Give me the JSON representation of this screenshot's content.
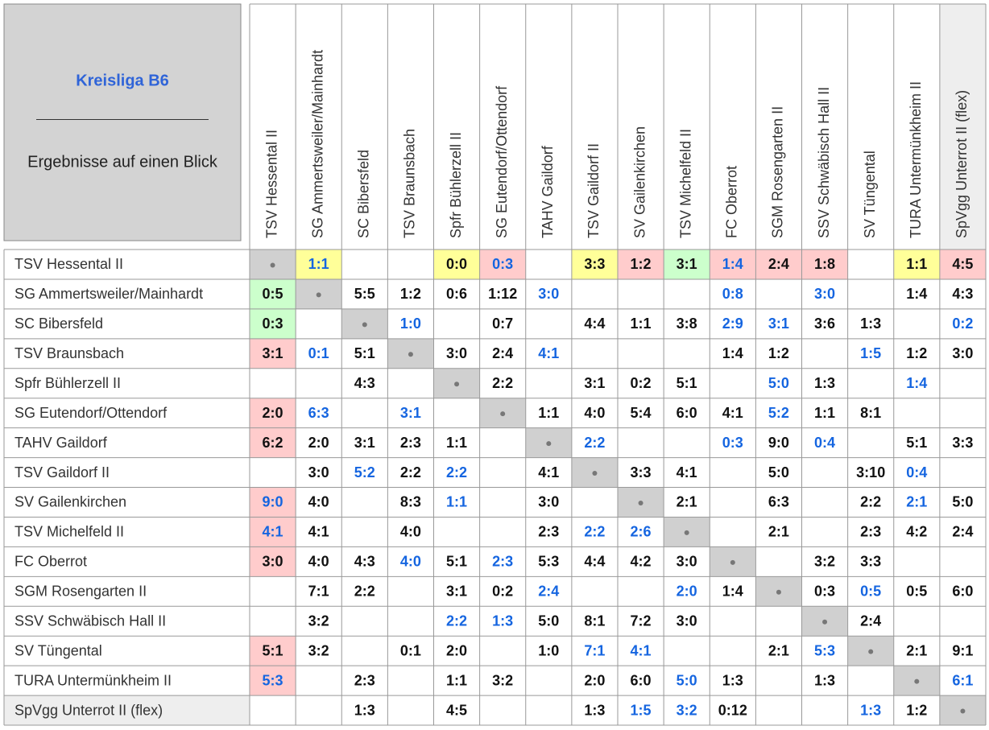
{
  "header": {
    "title": "Kreisliga B6",
    "divider": "________________________",
    "subtitle": "Ergebnisse auf einen Blick"
  },
  "colors": {
    "blue": "#1565e0",
    "yellow": "#ffff99",
    "pink": "#ffcccc",
    "green": "#ccffcc",
    "highlight_team": "#c00000"
  },
  "teams": [
    "TSV Hessental II",
    "SG Ammertsweiler/Mainhardt",
    "SC Bibersfeld",
    "TSV Braunsbach",
    "Spfr Bühlerzell II",
    "SG Eutendorf/Ottendorf",
    "TAHV Gaildorf",
    "TSV Gaildorf II",
    "SV Gailenkirchen",
    "TSV Michelfeld II",
    "FC Oberrot",
    "SGM Rosengarten II",
    "SSV Schwäbisch Hall II",
    "SV Tüngental",
    "TURA Untermünkheim II",
    "SpVgg Unterrot II (flex)"
  ],
  "table": {
    "rows": [
      [
        null,
        {
          "score": "1:1",
          "text": "blue",
          "fill": "yellow"
        },
        null,
        null,
        {
          "score": "0:0",
          "fill": "yellow"
        },
        {
          "score": "0:3",
          "text": "blue",
          "fill": "pink"
        },
        null,
        {
          "score": "3:3",
          "fill": "yellow"
        },
        {
          "score": "1:2",
          "fill": "pink"
        },
        {
          "score": "3:1",
          "fill": "green"
        },
        {
          "score": "1:4",
          "text": "blue",
          "fill": "pink"
        },
        {
          "score": "2:4",
          "fill": "pink"
        },
        {
          "score": "1:8",
          "fill": "pink"
        },
        null,
        {
          "score": "1:1",
          "fill": "yellow"
        },
        {
          "score": "4:5",
          "fill": "pink"
        }
      ],
      [
        {
          "score": "0:5",
          "fill": "green"
        },
        null,
        "5:5",
        "1:2",
        "0:6",
        "1:12",
        {
          "score": "3:0",
          "text": "blue"
        },
        null,
        null,
        null,
        {
          "score": "0:8",
          "text": "blue"
        },
        null,
        {
          "score": "3:0",
          "text": "blue"
        },
        null,
        "1:4",
        "4:3"
      ],
      [
        {
          "score": "0:3",
          "fill": "green"
        },
        null,
        null,
        {
          "score": "1:0",
          "text": "blue"
        },
        null,
        "0:7",
        null,
        "4:4",
        "1:1",
        "3:8",
        {
          "score": "2:9",
          "text": "blue"
        },
        {
          "score": "3:1",
          "text": "blue"
        },
        "3:6",
        "1:3",
        null,
        {
          "score": "0:2",
          "text": "blue"
        }
      ],
      [
        {
          "score": "3:1",
          "fill": "pink"
        },
        {
          "score": "0:1",
          "text": "blue"
        },
        "5:1",
        null,
        "3:0",
        "2:4",
        {
          "score": "4:1",
          "text": "blue"
        },
        null,
        null,
        null,
        "1:4",
        "1:2",
        null,
        {
          "score": "1:5",
          "text": "blue"
        },
        "1:2",
        "3:0"
      ],
      [
        null,
        null,
        "4:3",
        null,
        null,
        "2:2",
        null,
        "3:1",
        "0:2",
        "5:1",
        null,
        {
          "score": "5:0",
          "text": "blue"
        },
        "1:3",
        null,
        {
          "score": "1:4",
          "text": "blue"
        },
        null
      ],
      [
        {
          "score": "2:0",
          "fill": "pink"
        },
        {
          "score": "6:3",
          "text": "blue"
        },
        null,
        {
          "score": "3:1",
          "text": "blue"
        },
        null,
        null,
        "1:1",
        "4:0",
        "5:4",
        "6:0",
        "4:1",
        {
          "score": "5:2",
          "text": "blue"
        },
        "1:1",
        "8:1",
        null,
        null
      ],
      [
        {
          "score": "6:2",
          "fill": "pink"
        },
        "2:0",
        "3:1",
        "2:3",
        "1:1",
        null,
        null,
        {
          "score": "2:2",
          "text": "blue"
        },
        null,
        null,
        {
          "score": "0:3",
          "text": "blue"
        },
        "9:0",
        {
          "score": "0:4",
          "text": "blue"
        },
        null,
        "5:1",
        "3:3"
      ],
      [
        null,
        "3:0",
        {
          "score": "5:2",
          "text": "blue"
        },
        "2:2",
        {
          "score": "2:2",
          "text": "blue"
        },
        null,
        "4:1",
        null,
        "3:3",
        "4:1",
        null,
        "5:0",
        null,
        "3:10",
        {
          "score": "0:4",
          "text": "blue"
        },
        null
      ],
      [
        {
          "score": "9:0",
          "text": "blue",
          "fill": "pink"
        },
        "4:0",
        null,
        "8:3",
        {
          "score": "1:1",
          "text": "blue"
        },
        null,
        "3:0",
        null,
        null,
        "2:1",
        null,
        "6:3",
        null,
        "2:2",
        {
          "score": "2:1",
          "text": "blue"
        },
        "5:0"
      ],
      [
        {
          "score": "4:1",
          "text": "blue",
          "fill": "pink"
        },
        "4:1",
        null,
        "4:0",
        null,
        null,
        "2:3",
        {
          "score": "2:2",
          "text": "blue"
        },
        {
          "score": "2:6",
          "text": "blue"
        },
        null,
        null,
        "2:1",
        null,
        "2:3",
        "4:2",
        "2:4"
      ],
      [
        {
          "score": "3:0",
          "fill": "pink"
        },
        "4:0",
        "4:3",
        {
          "score": "4:0",
          "text": "blue"
        },
        "5:1",
        {
          "score": "2:3",
          "text": "blue"
        },
        "5:3",
        "4:4",
        "4:2",
        "3:0",
        null,
        null,
        "3:2",
        "3:3",
        null,
        null
      ],
      [
        null,
        "7:1",
        "2:2",
        null,
        "3:1",
        "0:2",
        {
          "score": "2:4",
          "text": "blue"
        },
        null,
        null,
        {
          "score": "2:0",
          "text": "blue"
        },
        "1:4",
        null,
        "0:3",
        {
          "score": "0:5",
          "text": "blue"
        },
        "0:5",
        "6:0"
      ],
      [
        null,
        "3:2",
        null,
        null,
        {
          "score": "2:2",
          "text": "blue"
        },
        {
          "score": "1:3",
          "text": "blue"
        },
        "5:0",
        "8:1",
        "7:2",
        "3:0",
        null,
        null,
        null,
        "2:4",
        null,
        null
      ],
      [
        {
          "score": "5:1",
          "fill": "pink"
        },
        "3:2",
        null,
        "0:1",
        "2:0",
        null,
        "1:0",
        {
          "score": "7:1",
          "text": "blue"
        },
        {
          "score": "4:1",
          "text": "blue"
        },
        null,
        null,
        "2:1",
        {
          "score": "5:3",
          "text": "blue"
        },
        null,
        "2:1",
        "9:1"
      ],
      [
        {
          "score": "5:3",
          "text": "blue",
          "fill": "pink"
        },
        null,
        "2:3",
        null,
        "1:1",
        "3:2",
        null,
        "2:0",
        "6:0",
        {
          "score": "5:0",
          "text": "blue"
        },
        "1:3",
        null,
        "1:3",
        null,
        null,
        {
          "score": "6:1",
          "text": "blue"
        }
      ],
      [
        null,
        null,
        "1:3",
        null,
        "4:5",
        null,
        null,
        "1:3",
        {
          "score": "1:5",
          "text": "blue"
        },
        {
          "score": "3:2",
          "text": "blue"
        },
        "0:12",
        null,
        null,
        {
          "score": "1:3",
          "text": "blue"
        },
        "1:2",
        null
      ]
    ]
  }
}
